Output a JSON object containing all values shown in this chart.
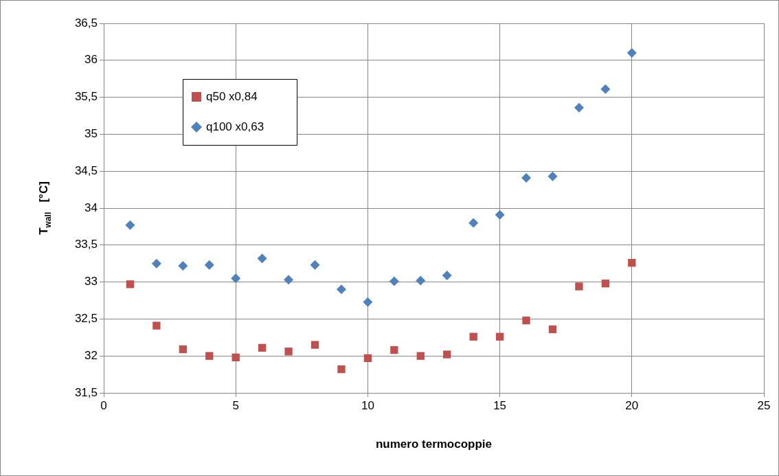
{
  "chart_data": {
    "type": "scatter",
    "xlabel": "numero termocoppie",
    "ylabel": "T$_{wall}$   [°C]",
    "x": [
      1,
      2,
      3,
      4,
      5,
      6,
      7,
      8,
      9,
      10,
      11,
      12,
      13,
      14,
      15,
      16,
      17,
      18,
      19,
      20
    ],
    "series": [
      {
        "name": "q50 x0,84",
        "color": "#c0504d",
        "marker": "square",
        "values": [
          32.97,
          32.41,
          32.09,
          32.0,
          31.98,
          32.11,
          32.06,
          32.15,
          31.82,
          31.97,
          32.08,
          32.0,
          32.02,
          32.26,
          32.26,
          32.48,
          32.36,
          32.94,
          32.98,
          33.26
        ]
      },
      {
        "name": "q100 x0,63",
        "color": "#4f81bd",
        "marker": "diamond",
        "values": [
          33.77,
          33.25,
          33.22,
          33.23,
          33.05,
          33.32,
          33.03,
          33.23,
          32.9,
          32.73,
          33.01,
          33.02,
          33.09,
          33.8,
          33.91,
          34.41,
          34.43,
          35.36,
          35.61,
          36.1
        ]
      }
    ],
    "xlim": [
      0,
      25
    ],
    "xticks": [
      0,
      5,
      10,
      15,
      20,
      25
    ],
    "ylim": [
      31.5,
      36.5
    ],
    "yticks": [
      {
        "value": 31.5,
        "label": "31,5"
      },
      32,
      {
        "value": 32.5,
        "label": "32,5"
      },
      33,
      {
        "value": 33.5,
        "label": "33,5"
      },
      34,
      {
        "value": 34.5,
        "label": "34,5"
      },
      35,
      {
        "value": 35.5,
        "label": "35,5"
      },
      36,
      {
        "value": 36.5,
        "label": "36,5"
      }
    ],
    "grid": true,
    "legend": "top left"
  }
}
